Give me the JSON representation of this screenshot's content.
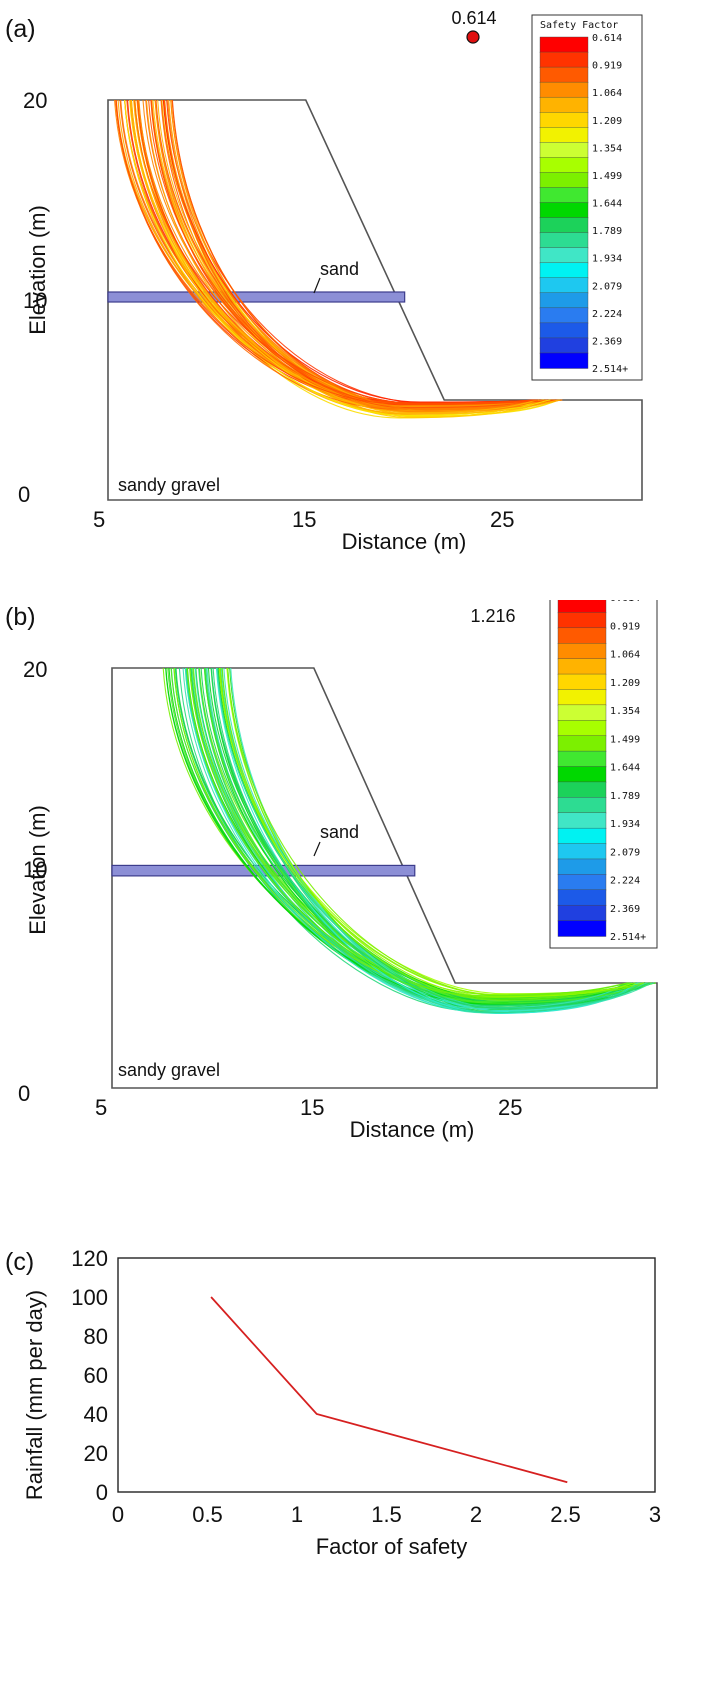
{
  "legend": {
    "title": "Safety Factor",
    "labels": [
      "0.614",
      "0.919",
      "1.064",
      "1.209",
      "1.354",
      "1.499",
      "1.644",
      "1.789",
      "1.934",
      "2.079",
      "2.224",
      "2.369",
      "2.514+"
    ],
    "colors": [
      "#ff0000",
      "#ff3300",
      "#ff5a00",
      "#ff8c00",
      "#ffb300",
      "#ffd700",
      "#f2f200",
      "#ccff33",
      "#a8ff00",
      "#7cf000",
      "#40e830",
      "#00d800",
      "#1cd25a",
      "#2ddc92",
      "#40e6c6",
      "#00f2f2",
      "#1ec8f0",
      "#1e9be8",
      "#2a7cf0",
      "#1c5ae8",
      "#2040e0",
      "#0000ff"
    ]
  },
  "panels": [
    {
      "label": "(a)",
      "min_fs": "0.614",
      "xlabel": "Distance (m)",
      "ylabel": "Elevation (m)",
      "xticks": [
        "5",
        "15",
        "25"
      ],
      "yticks": [
        "0",
        "10",
        "20"
      ],
      "sand_label": "sand",
      "gravel_label": "sandy gravel"
    },
    {
      "label": "(b)",
      "min_fs": "1.216",
      "xlabel": "Distance (m)",
      "ylabel": "Elevation (m)",
      "xticks": [
        "5",
        "15",
        "25"
      ],
      "yticks": [
        "0",
        "10",
        "20"
      ],
      "sand_label": "sand",
      "gravel_label": "sandy gravel"
    }
  ],
  "chart_data": [
    {
      "type": "scatter",
      "title": "",
      "panel": "(a)",
      "xlabel": "Distance (m)",
      "ylabel": "Elevation (m)",
      "xlim": [
        5,
        32
      ],
      "ylim": [
        0,
        20
      ],
      "geometry": {
        "slope_outline": [
          [
            5,
            20
          ],
          [
            15,
            20
          ],
          [
            22,
            5
          ],
          [
            32,
            5
          ]
        ],
        "sand_layer": {
          "x": [
            5,
            20
          ],
          "y": [
            9.9,
            10.4
          ]
        },
        "toe_y": 5
      },
      "slip_surfaces": {
        "count": 60,
        "entry_x_range": [
          5.3,
          8.3
        ],
        "exit_x_range": [
          26.5,
          28
        ],
        "lowest_elevation_range": [
          4.1,
          4.9
        ],
        "safety_factor_min": 0.614,
        "safety_factor_max": 1.2
      },
      "min_safety_factor": 0.614
    },
    {
      "type": "scatter",
      "title": "",
      "panel": "(b)",
      "xlabel": "Distance (m)",
      "ylabel": "Elevation (m)",
      "xlim": [
        5,
        32
      ],
      "ylim": [
        0,
        20
      ],
      "geometry": {
        "slope_outline": [
          [
            5,
            20
          ],
          [
            15,
            20
          ],
          [
            22,
            5
          ],
          [
            32,
            5
          ]
        ],
        "sand_layer": {
          "x": [
            5,
            20
          ],
          "y": [
            10.1,
            10.6
          ]
        },
        "toe_y": 5
      },
      "slip_surfaces": {
        "count": 60,
        "entry_x_range": [
          7.5,
          11
        ],
        "exit_x_range": [
          30.5,
          32
        ],
        "lowest_elevation_range": [
          3.4,
          4.5
        ],
        "safety_factor_min": 1.216,
        "safety_factor_max": 2.1
      },
      "min_safety_factor": 1.216
    },
    {
      "type": "line",
      "title": "",
      "panel": "(c)",
      "xlabel": "Factor of safety",
      "ylabel": "Rainfall (mm per day)",
      "xlim": [
        0,
        3
      ],
      "ylim": [
        0,
        120
      ],
      "xticks": [
        "0",
        "0.5",
        "1",
        "1.5",
        "2",
        "2.5",
        "3"
      ],
      "yticks": [
        "0",
        "20",
        "40",
        "60",
        "80",
        "100",
        "120"
      ],
      "series": [
        {
          "x": [
            0.52,
            1.11,
            2.51
          ],
          "y": [
            100,
            40,
            5
          ],
          "color": "#d62020"
        }
      ],
      "grid": false
    }
  ],
  "panel_c_label": "(c)"
}
